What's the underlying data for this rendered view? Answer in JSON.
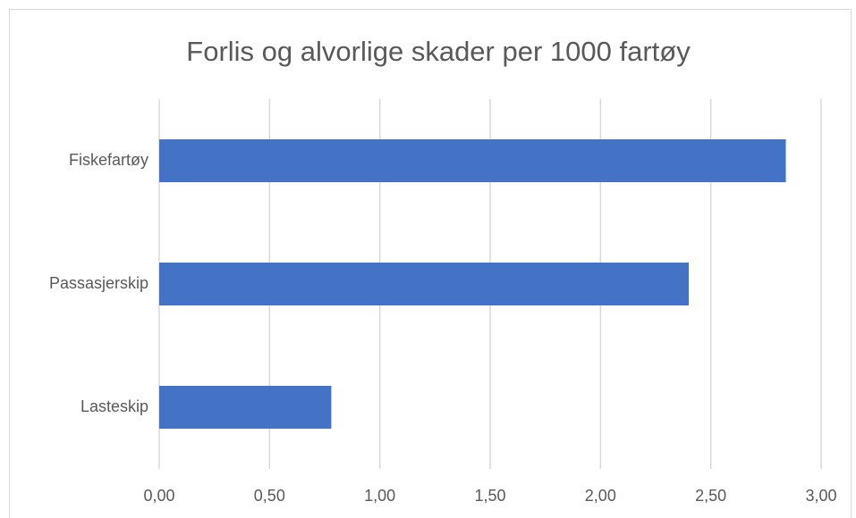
{
  "chart_data": {
    "type": "bar",
    "orientation": "horizontal",
    "title": "Forlis og alvorlige skader per 1000 fartøy",
    "categories": [
      "Fiskefartøy",
      "Passasjerskip",
      "Lasteskip"
    ],
    "values": [
      2.84,
      2.4,
      0.78
    ],
    "color": "#4472c4",
    "xlim": [
      0,
      3
    ],
    "xticks": [
      {
        "value": 0,
        "label": "0,00"
      },
      {
        "value": 0.5,
        "label": "0,50"
      },
      {
        "value": 1,
        "label": "1,00"
      },
      {
        "value": 1.5,
        "label": "1,50"
      },
      {
        "value": 2,
        "label": "2,00"
      },
      {
        "value": 2.5,
        "label": "2,50"
      },
      {
        "value": 3,
        "label": "3,00"
      }
    ],
    "grid": true
  }
}
